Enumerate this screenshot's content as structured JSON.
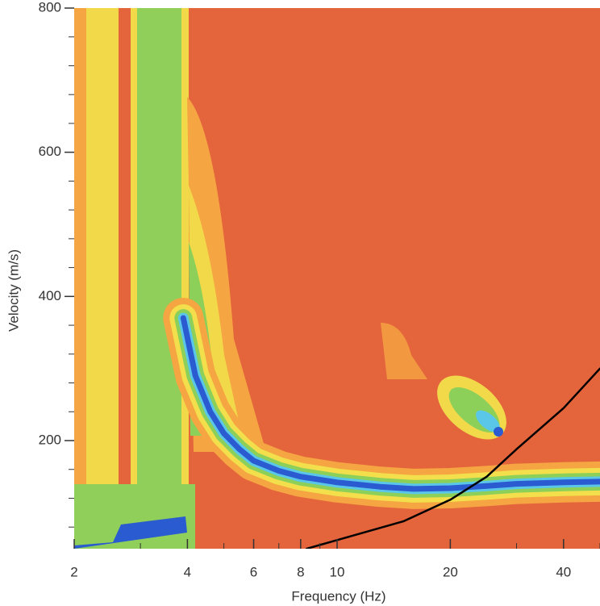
{
  "chart_data": {
    "type": "line",
    "x_label": "Frequency (Hz)",
    "y_label": "Velocity (m/s)",
    "xscale": "log",
    "xlim": [
      2,
      50
    ],
    "ylim": [
      50,
      800
    ],
    "xticks": [
      2,
      4,
      6,
      8,
      10,
      20,
      40
    ],
    "xminorticks": [
      3,
      5,
      7,
      9,
      30,
      50
    ],
    "yticks": [
      200,
      400,
      600,
      800
    ],
    "yminorticks": [
      80,
      120,
      160,
      240,
      280,
      320,
      360,
      440,
      480,
      520,
      560,
      640,
      680,
      720,
      760
    ],
    "series": [
      {
        "color": "#2a5bd0",
        "x": [
          3.9,
          4.2,
          4.6,
          5,
          5.5,
          6,
          7,
          8,
          10,
          13,
          16,
          20,
          25,
          30,
          40,
          50
        ],
        "values": [
          370,
          290,
          240,
          210,
          188,
          172,
          158,
          150,
          142,
          136,
          133,
          134,
          137,
          140,
          142,
          143
        ]
      },
      {
        "color": "#000000",
        "x": [
          8.3,
          10,
          15,
          20,
          25,
          30,
          40,
          50
        ],
        "values": [
          50,
          62,
          88,
          118,
          150,
          188,
          245,
          300
        ]
      }
    ]
  }
}
